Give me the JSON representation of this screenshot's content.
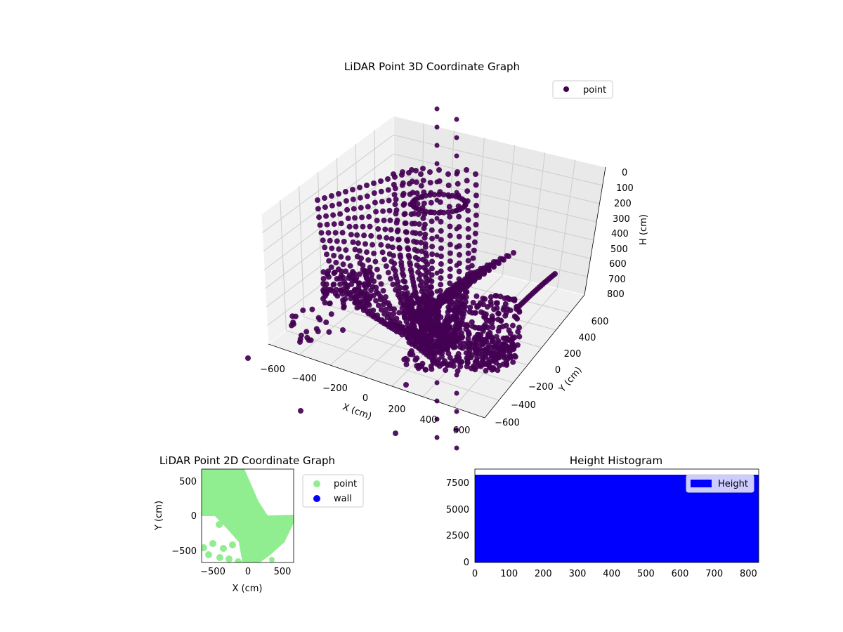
{
  "chart_data": [
    {
      "type": "scatter",
      "subtype": "3d",
      "title": "LiDAR Point 3D Coordinate Graph",
      "xlabel": "X (cm)",
      "ylabel": "Y (cm)",
      "zlabel": "H (cm)",
      "xlim": [
        -700,
        700
      ],
      "ylim": [
        -700,
        700
      ],
      "zlim": [
        850,
        0
      ],
      "x_ticks": [
        "−600",
        "−400",
        "−200",
        "0",
        "200",
        "400",
        "600"
      ],
      "y_ticks": [
        "−600",
        "−400",
        "−200",
        "0",
        "200",
        "400",
        "600"
      ],
      "z_ticks": [
        "0",
        "100",
        "200",
        "300",
        "400",
        "500",
        "600",
        "700",
        "800"
      ],
      "z_inverted": true,
      "grid": true,
      "legend": {
        "placement": "top-right",
        "entries": [
          "point"
        ]
      },
      "colors": {
        "point": "#440154",
        "pane": "#f2f2f2",
        "grid": "#cccccc"
      }
    },
    {
      "type": "scatter",
      "title": "LiDAR Point 2D Coordinate Graph",
      "xlabel": "X (cm)",
      "ylabel": "Y (cm)",
      "xlim": [
        -670,
        670
      ],
      "ylim": [
        -670,
        670
      ],
      "x_ticks": [
        "−500",
        "0",
        "500"
      ],
      "y_ticks": [
        "−500",
        "0",
        "500"
      ],
      "series": [
        {
          "name": "point",
          "color": "#90ee90"
        },
        {
          "name": "wall",
          "color": "#0000ff"
        }
      ],
      "legend": {
        "placement": "outside-right",
        "entries": [
          "point",
          "wall"
        ]
      }
    },
    {
      "type": "bar",
      "subtype": "histogram",
      "title": "Height Histogram",
      "xlim": [
        0,
        830
      ],
      "ylim": [
        0,
        8700
      ],
      "x_ticks": [
        "0",
        "100",
        "200",
        "300",
        "400",
        "500",
        "600",
        "700",
        "800"
      ],
      "y_ticks": [
        "0",
        "2500",
        "5000",
        "7500"
      ],
      "series": [
        {
          "name": "Height",
          "color": "#0000ff",
          "bin_range": [
            0,
            830
          ],
          "approx_count": 8300
        }
      ],
      "legend": {
        "placement": "top-right",
        "entries": [
          "Height"
        ]
      }
    }
  ]
}
